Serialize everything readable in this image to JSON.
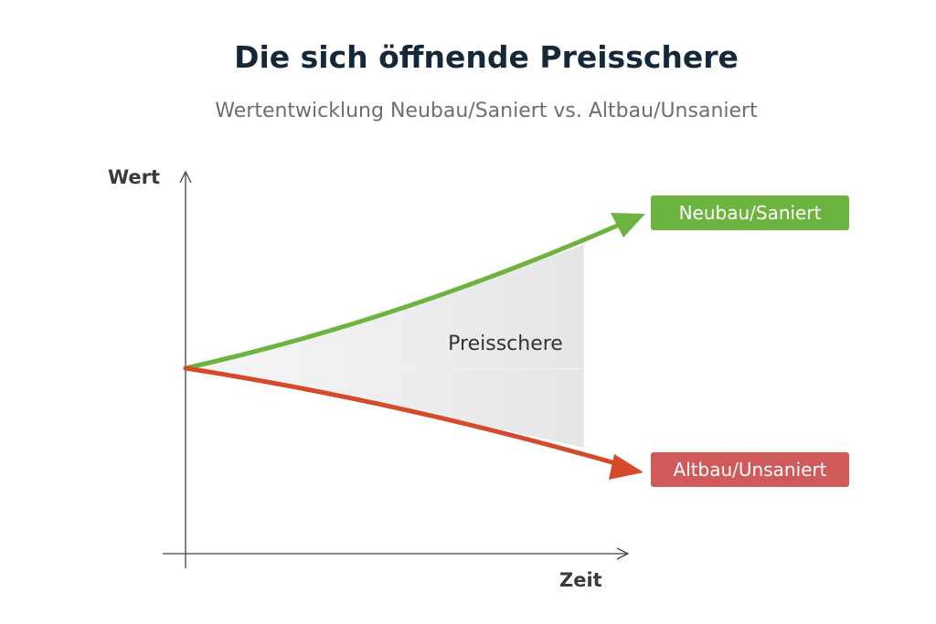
{
  "title": "Die sich öffnende Preisschere",
  "subtitle": "Wertentwicklung Neubau/Saniert vs. Altbau/Unsaniert",
  "axes": {
    "y_label": "Wert",
    "x_label": "Zeit"
  },
  "gap_label": "Preisschere",
  "series": {
    "upper": {
      "label": "Neubau/Saniert",
      "color": "#6db33f"
    },
    "lower": {
      "label": "Altbau/Unsaniert",
      "color": "#d44a2a",
      "badge_color": "#cf5a5a"
    }
  },
  "colors": {
    "axis": "#444444",
    "gap_fill": "#ebebec"
  }
}
